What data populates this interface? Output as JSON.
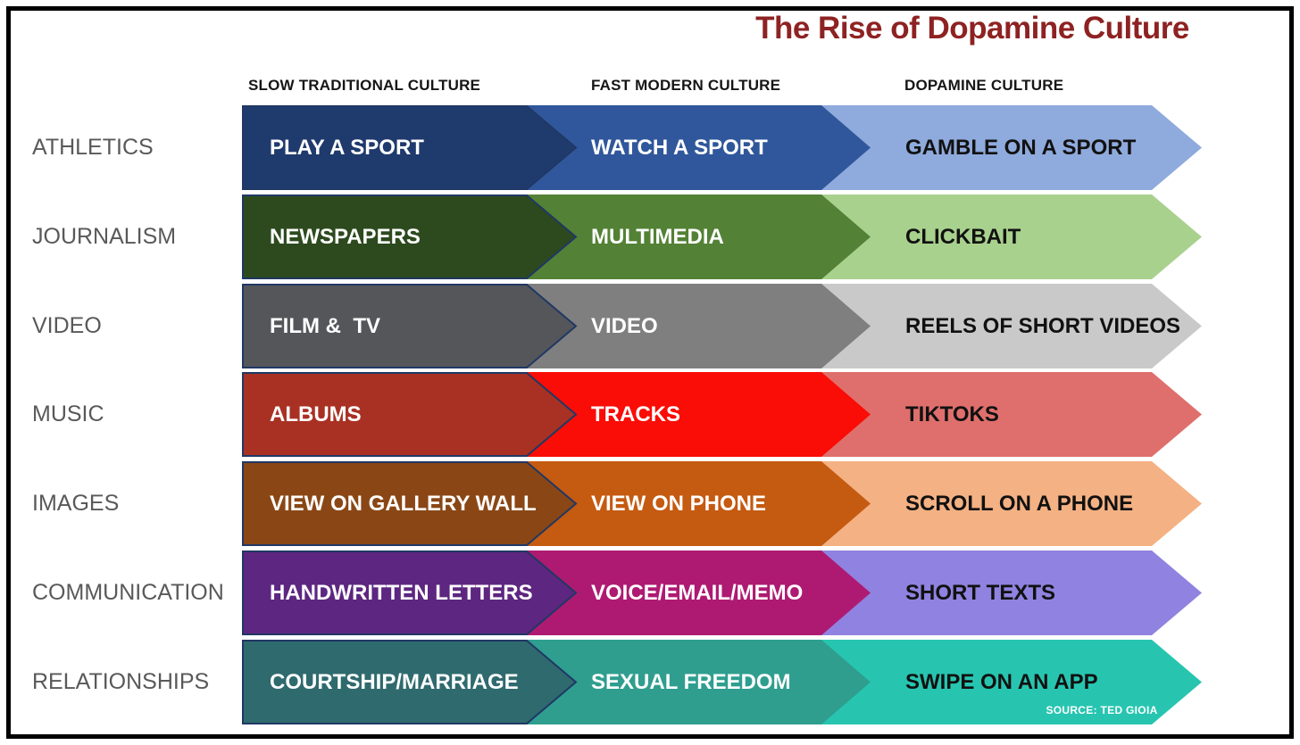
{
  "title": {
    "text": "The Rise of Dopamine Culture",
    "color": "#8E2222"
  },
  "columns": [
    {
      "label": "SLOW TRADITIONAL CULTURE"
    },
    {
      "label": "FAST MODERN CULTURE"
    },
    {
      "label": "DOPAMINE CULTURE"
    }
  ],
  "source_note": "SOURCE: TED GIOIA",
  "outline_color": "#203864",
  "rows": [
    {
      "category": "ATHLETICS",
      "cells": [
        {
          "label": "PLAY A SPORT",
          "color": "#1F3A6D",
          "text_color": "#FFFFFF"
        },
        {
          "label": "WATCH A SPORT",
          "color": "#30579B",
          "text_color": "#FFFFFF"
        },
        {
          "label": "GAMBLE ON A SPORT",
          "color": "#8FAADC",
          "text_color": "#111111"
        }
      ]
    },
    {
      "category": "JOURNALISM",
      "cells": [
        {
          "label": "NEWSPAPERS",
          "color": "#2D4A1E",
          "text_color": "#FFFFFF"
        },
        {
          "label": "MULTIMEDIA",
          "color": "#538135",
          "text_color": "#FFFFFF"
        },
        {
          "label": "CLICKBAIT",
          "color": "#A9D18E",
          "text_color": "#111111"
        }
      ]
    },
    {
      "category": "VIDEO",
      "cells": [
        {
          "label": "FILM &  TV",
          "color": "#54565A",
          "text_color": "#FFFFFF"
        },
        {
          "label": "VIDEO",
          "color": "#7F7F7F",
          "text_color": "#FFFFFF"
        },
        {
          "label": "REELS OF SHORT VIDEOS",
          "color": "#C9C9C9",
          "text_color": "#111111"
        }
      ]
    },
    {
      "category": "MUSIC",
      "cells": [
        {
          "label": "ALBUMS",
          "color": "#A93123",
          "text_color": "#FFFFFF"
        },
        {
          "label": "TRACKS",
          "color": "#F90D06",
          "text_color": "#FFFFFF"
        },
        {
          "label": "TIKTOKS",
          "color": "#DF6F6C",
          "text_color": "#111111"
        }
      ]
    },
    {
      "category": "IMAGES",
      "cells": [
        {
          "label": "VIEW ON GALLERY WALL",
          "color": "#8A4715",
          "text_color": "#FFFFFF"
        },
        {
          "label": "VIEW ON PHONE",
          "color": "#C55A11",
          "text_color": "#FFFFFF"
        },
        {
          "label": "SCROLL ON A PHONE",
          "color": "#F4B183",
          "text_color": "#111111"
        }
      ]
    },
    {
      "category": "COMMUNICATION",
      "cells": [
        {
          "label": "HANDWRITTEN LETTERS",
          "color": "#5D2680",
          "text_color": "#FFFFFF"
        },
        {
          "label": "VOICE/EMAIL/MEMO",
          "color": "#AE1A72",
          "text_color": "#FFFFFF"
        },
        {
          "label": "SHORT TEXTS",
          "color": "#9082E0",
          "text_color": "#111111"
        }
      ]
    },
    {
      "category": "RELATIONSHIPS",
      "cells": [
        {
          "label": "COURTSHIP/MARRIAGE",
          "color": "#2F6A6E",
          "text_color": "#FFFFFF"
        },
        {
          "label": "SEXUAL FREEDOM",
          "color": "#2F9E8F",
          "text_color": "#FFFFFF"
        },
        {
          "label": "SWIPE ON AN APP",
          "color": "#27C5B0",
          "text_color": "#111111"
        }
      ]
    }
  ]
}
